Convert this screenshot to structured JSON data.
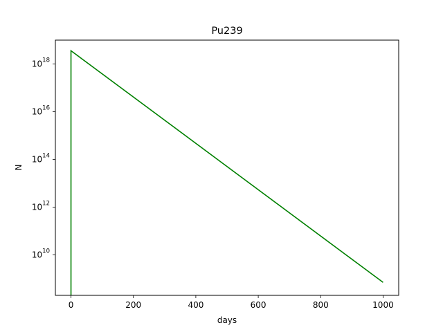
{
  "chart_data": {
    "type": "line",
    "title": "Pu239",
    "xlabel": "days",
    "ylabel": "N",
    "y_scale": "log",
    "xlim": [
      -50,
      1050
    ],
    "ylim": [
      200000000.0,
      1e+19
    ],
    "grid": false,
    "x_ticks": [
      {
        "value": 0,
        "label": "0"
      },
      {
        "value": 200,
        "label": "200"
      },
      {
        "value": 400,
        "label": "400"
      },
      {
        "value": 600,
        "label": "600"
      },
      {
        "value": 800,
        "label": "800"
      },
      {
        "value": 1000,
        "label": "1000"
      }
    ],
    "y_ticks": [
      {
        "value": 10000000000.0,
        "base": "10",
        "exp": "10"
      },
      {
        "value": 1000000000000.0,
        "base": "10",
        "exp": "12"
      },
      {
        "value": 100000000000000.0,
        "base": "10",
        "exp": "14"
      },
      {
        "value": 1e+16,
        "base": "10",
        "exp": "16"
      },
      {
        "value": 1e+18,
        "base": "10",
        "exp": "18"
      }
    ],
    "series": [
      {
        "color": "#008000",
        "x": [
          0,
          0,
          1000
        ],
        "y": [
          200000000.0,
          3.6e+18,
          700000000.0
        ]
      }
    ]
  }
}
